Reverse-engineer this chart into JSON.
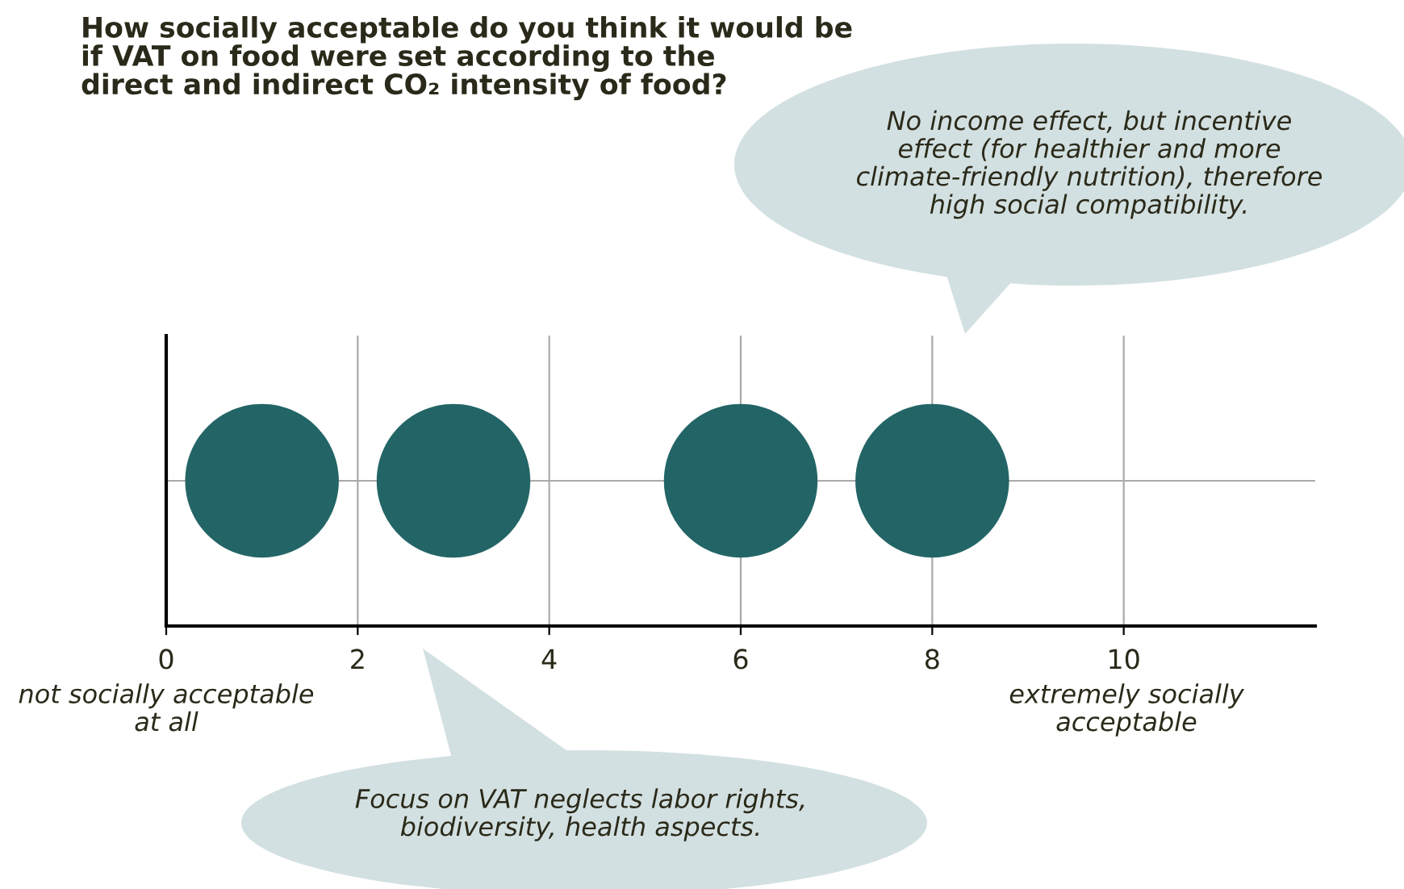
{
  "chart_data": {
    "type": "scatter",
    "title": "How socially acceptable do you think it would be\nif VAT on food were set according to the\ndirect and indirect CO₂ intensity of food?",
    "orientation": "horizontal",
    "categories": [
      null
    ],
    "series": [
      {
        "color": "#236566",
        "values": [
          1
        ]
      },
      {
        "color": "#236566",
        "values": [
          3
        ]
      },
      {
        "color": "#236566",
        "values": [
          6
        ]
      },
      {
        "color": "#236566",
        "values": [
          8
        ]
      }
    ],
    "marker": "circle",
    "xlim": [
      0,
      12
    ],
    "xticks": [
      0,
      2,
      4,
      6,
      8,
      10
    ],
    "grid": true,
    "annotations": [
      "No income effect, but incentive\neffect (for healthier and more\nclimate-friendly nutrition), therefore\nhigh social compatibility.",
      "Focus on VAT neglects labor rights,\nbiodiversity, health aspects.",
      "not socially acceptable\nat all",
      "extremely socially\nacceptable"
    ]
  }
}
